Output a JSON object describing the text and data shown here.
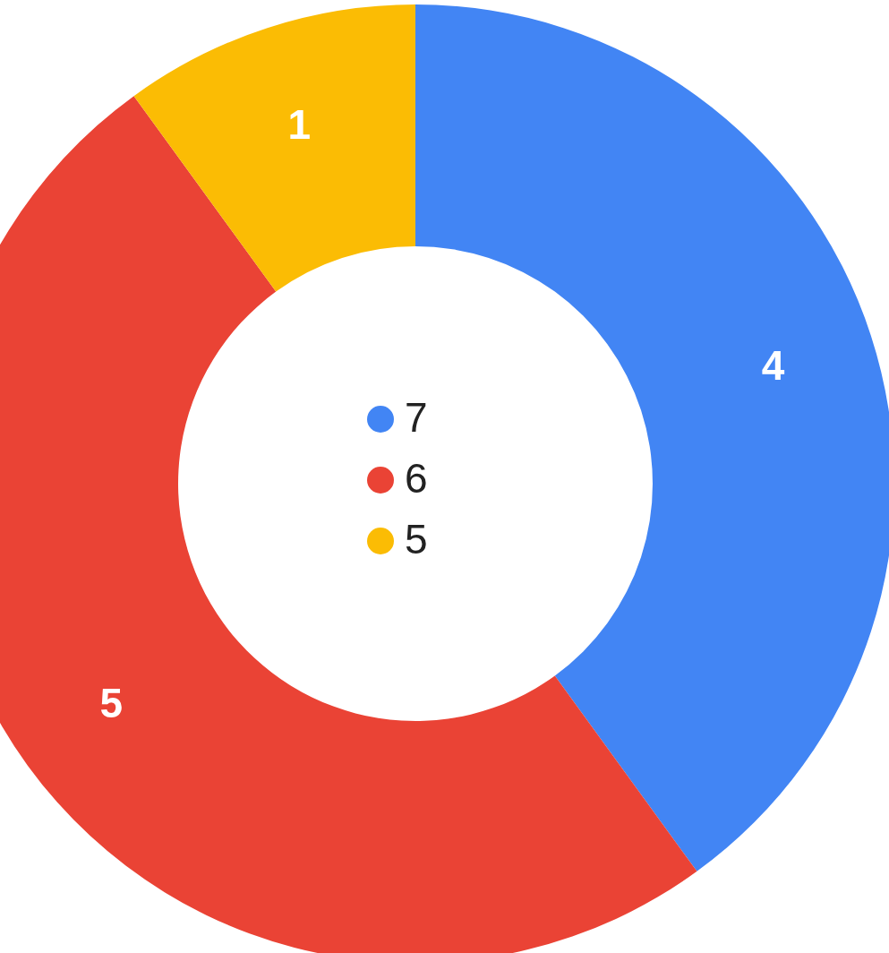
{
  "chart_data": {
    "type": "donut",
    "categories": [
      "7",
      "6",
      "5"
    ],
    "values": [
      4,
      5,
      1
    ],
    "colors": [
      "#4285f4",
      "#ea4335",
      "#fbbc04"
    ],
    "data_labels": true,
    "legend": "center"
  }
}
